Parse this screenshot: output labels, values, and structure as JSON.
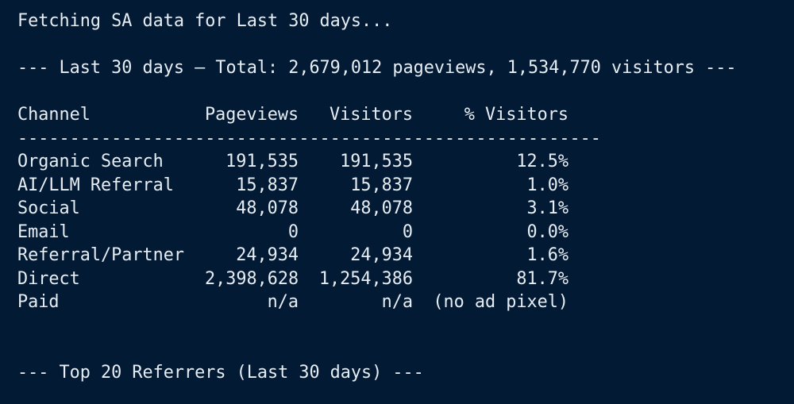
{
  "terminal": {
    "status_line": "Fetching SA data for Last 30 days...",
    "summary_line": "--- Last 30 days — Total: 2,679,012 pageviews, 1,534,770 visitors ---",
    "table": {
      "headers": {
        "channel": "Channel",
        "pageviews": "Pageviews",
        "visitors": "Visitors",
        "pct_visitors": "% Visitors"
      },
      "divider": "--------------------------------------------------------",
      "rows": [
        {
          "channel": "Organic Search",
          "pageviews": "191,535",
          "visitors": "191,535",
          "pct_visitors": "12.5%"
        },
        {
          "channel": "AI/LLM Referral",
          "pageviews": "15,837",
          "visitors": "15,837",
          "pct_visitors": "1.0%"
        },
        {
          "channel": "Social",
          "pageviews": "48,078",
          "visitors": "48,078",
          "pct_visitors": "3.1%"
        },
        {
          "channel": "Email",
          "pageviews": "0",
          "visitors": "0",
          "pct_visitors": "0.0%"
        },
        {
          "channel": "Referral/Partner",
          "pageviews": "24,934",
          "visitors": "24,934",
          "pct_visitors": "1.6%"
        },
        {
          "channel": "Direct",
          "pageviews": "2,398,628",
          "visitors": "1,254,386",
          "pct_visitors": "81.7%"
        },
        {
          "channel": "Paid",
          "pageviews": "n/a",
          "visitors": "n/a",
          "pct_visitors": "(no ad pixel)"
        }
      ]
    },
    "referrers_line": "--- Top 20 Referrers (Last 30 days) ---"
  },
  "colors": {
    "background": "#021a33",
    "text": "#e6edf3"
  }
}
